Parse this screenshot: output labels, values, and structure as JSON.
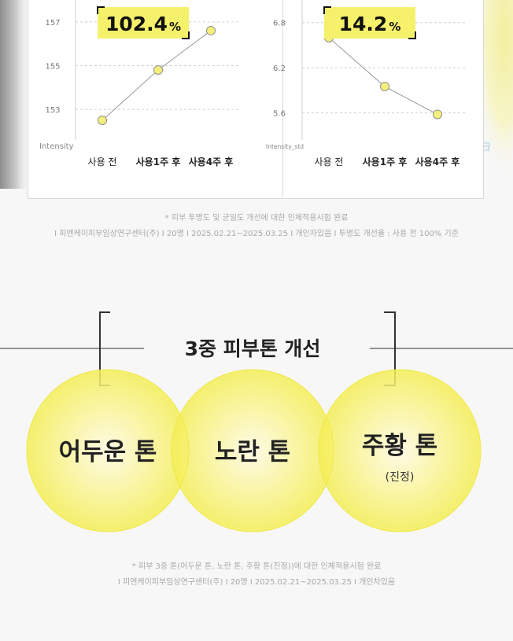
{
  "chart_data": [
    {
      "type": "line",
      "categories": [
        "사용 전",
        "사용1주 후",
        "사용4주 후"
      ],
      "values": [
        152.5,
        154.8,
        156.6
      ],
      "ylabel": "Intensity",
      "yticks": [
        "153",
        "155",
        "157"
      ],
      "ylim": [
        151.6,
        158.0
      ],
      "highlight": {
        "number": "102.4",
        "unit": "%"
      },
      "point_color": "#f3ef7a",
      "grid": true
    },
    {
      "type": "line",
      "categories": [
        "사용 전",
        "사용1주 후",
        "사용4주 후"
      ],
      "values": [
        6.6,
        5.95,
        5.58
      ],
      "ylabel": "Intensity_std",
      "yticks": [
        "5.6",
        "6.2",
        "6.8"
      ],
      "ylim": [
        5.24,
        7.1
      ],
      "highlight": {
        "number": "14.2",
        "unit": "%"
      },
      "point_color": "#f3ef7a",
      "grid": true
    }
  ],
  "notes_top": [
    "* 피부 투명도 및 균일도 개선에 대한 인체적용시험 완료",
    "I 피엔케이피부임상연구센터(주) I 20명 I 2025.02.21~2025.03.25 I 개인차있음  I 투명도  개선율 : 사용 전 100% 기준"
  ],
  "tone_section": {
    "title": "3중 피부톤 개선",
    "circles": [
      {
        "label": "어두운 톤",
        "sub": ""
      },
      {
        "label": "노란 톤",
        "sub": ""
      },
      {
        "label": "주황 톤",
        "sub": "(진정)"
      }
    ],
    "circle_color": "#f4ee55"
  },
  "notes_bottom": [
    "* 피부 3중 톤(어두운 톤, 노란 톤, 주황 톤(진정))에 대한 인체적용시험 완료",
    "I 피엔케이피부임상연구센터(주) I 20명 I 2025.02.21~2025.03.25 I 개인차있음"
  ],
  "decor": {
    "script_letter": "a"
  }
}
